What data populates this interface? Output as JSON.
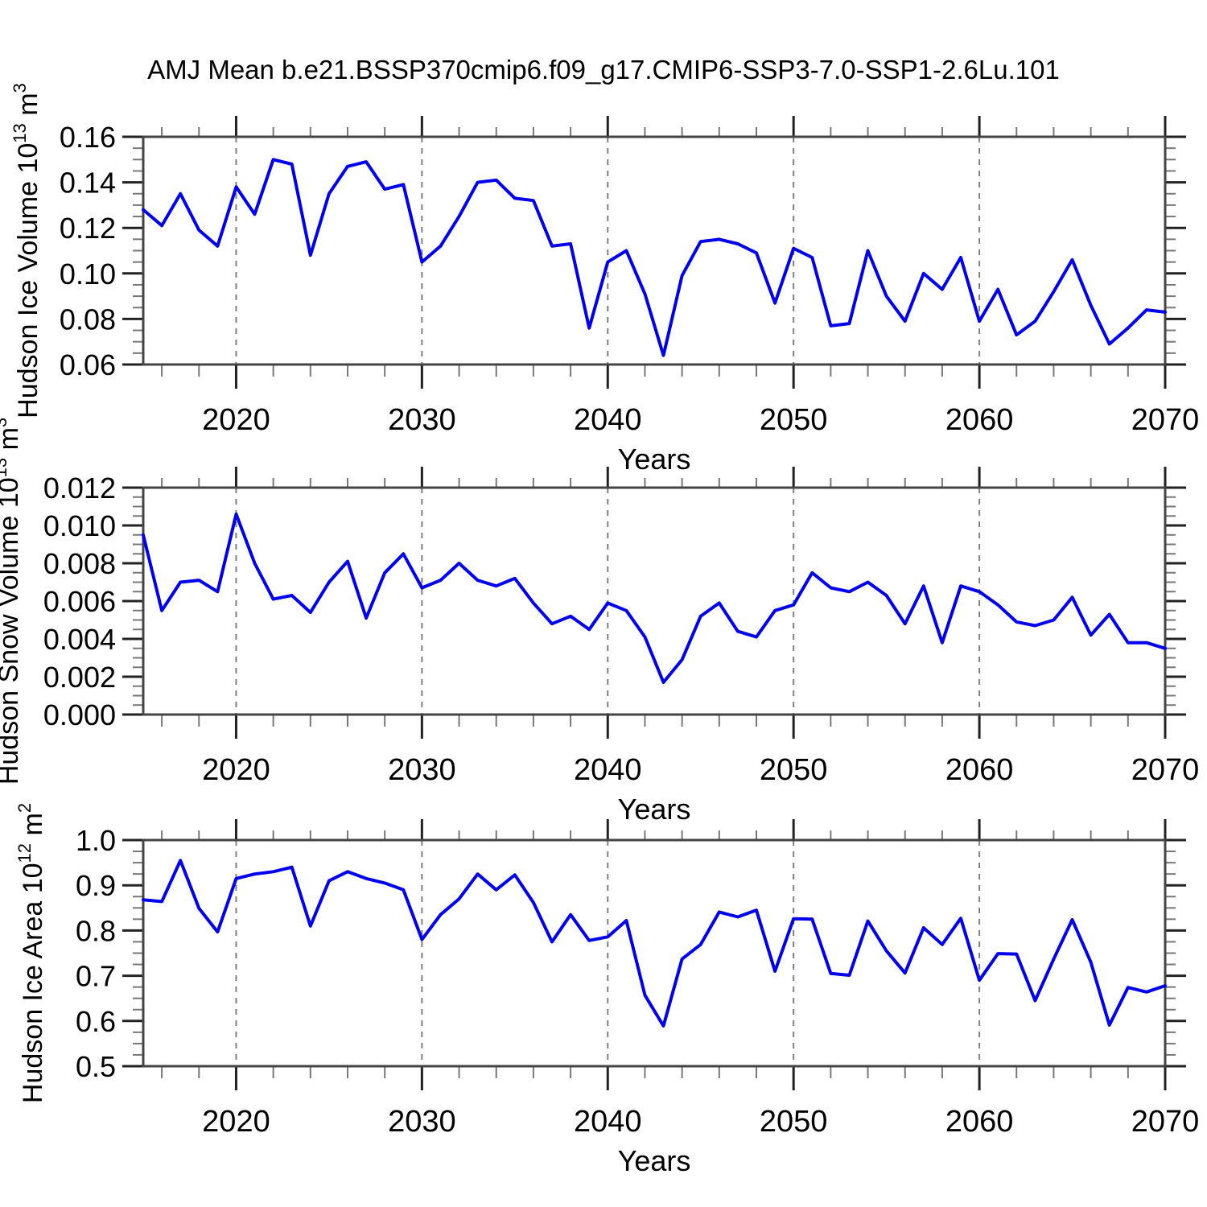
{
  "title": "AMJ Mean b.e21.BSSP370cmip6.f09_g17.CMIP6-SSP3-7.0-SSP1-2.6Lu.101",
  "line_color": "#0000EE",
  "chart_data": {
    "type": "line",
    "x_label": "Years",
    "x_range": [
      2015,
      2070
    ],
    "x_major_ticks": [
      2020,
      2030,
      2040,
      2050,
      2060,
      2070
    ],
    "x_minor_tick_step": 2,
    "vertical_dashed_gridlines": [
      2020,
      2030,
      2040,
      2050,
      2060
    ],
    "legend_position": "none",
    "years": [
      2015,
      2016,
      2017,
      2018,
      2019,
      2020,
      2021,
      2022,
      2023,
      2024,
      2025,
      2026,
      2027,
      2028,
      2029,
      2030,
      2031,
      2032,
      2033,
      2034,
      2035,
      2036,
      2037,
      2038,
      2039,
      2040,
      2041,
      2042,
      2043,
      2044,
      2045,
      2046,
      2047,
      2048,
      2049,
      2050,
      2051,
      2052,
      2053,
      2054,
      2055,
      2056,
      2057,
      2058,
      2059,
      2060,
      2061,
      2062,
      2063,
      2064,
      2065,
      2066,
      2067,
      2068,
      2069,
      2070
    ],
    "panels": [
      {
        "name": "hudson-ice-volume",
        "ylabel": "Hudson Ice Volume 10^13^ m^3^",
        "xlabel": "Years",
        "ylim": [
          0.06,
          0.16
        ],
        "ytick_labels": [
          "0.06",
          "0.08",
          "0.10",
          "0.12",
          "0.14",
          "0.16"
        ],
        "ytick_values": [
          0.06,
          0.08,
          0.1,
          0.12,
          0.14,
          0.16
        ],
        "values": [
          0.128,
          0.121,
          0.135,
          0.119,
          0.112,
          0.138,
          0.126,
          0.15,
          0.148,
          0.108,
          0.135,
          0.147,
          0.149,
          0.137,
          0.139,
          0.105,
          0.112,
          0.125,
          0.14,
          0.141,
          0.133,
          0.132,
          0.112,
          0.113,
          0.076,
          0.105,
          0.11,
          0.091,
          0.064,
          0.099,
          0.114,
          0.115,
          0.113,
          0.109,
          0.087,
          0.111,
          0.107,
          0.077,
          0.078,
          0.11,
          0.09,
          0.079,
          0.1,
          0.093,
          0.107,
          0.079,
          0.093,
          0.073,
          0.079,
          0.092,
          0.106,
          0.086,
          0.069,
          0.076,
          0.084,
          0.083
        ]
      },
      {
        "name": "hudson-snow-volume",
        "ylabel": "Hudson Snow Volume 10^13^ m^3^",
        "xlabel": "Years",
        "ylim": [
          0.0,
          0.012
        ],
        "ytick_labels": [
          "0.000",
          "0.002",
          "0.004",
          "0.006",
          "0.008",
          "0.010",
          "0.012"
        ],
        "ytick_values": [
          0.0,
          0.002,
          0.004,
          0.006,
          0.008,
          0.01,
          0.012
        ],
        "values": [
          0.0095,
          0.0055,
          0.007,
          0.0071,
          0.0065,
          0.0106,
          0.008,
          0.0061,
          0.0063,
          0.0054,
          0.007,
          0.0081,
          0.0051,
          0.0075,
          0.0085,
          0.0067,
          0.0071,
          0.008,
          0.0071,
          0.0068,
          0.0072,
          0.0059,
          0.0048,
          0.0052,
          0.0045,
          0.0059,
          0.0055,
          0.0041,
          0.0017,
          0.0029,
          0.0052,
          0.0059,
          0.0044,
          0.0041,
          0.0055,
          0.0058,
          0.0075,
          0.0067,
          0.0065,
          0.007,
          0.0063,
          0.0048,
          0.0068,
          0.0038,
          0.0068,
          0.0065,
          0.0058,
          0.0049,
          0.0047,
          0.005,
          0.0062,
          0.0042,
          0.0053,
          0.0038,
          0.0038,
          0.0035
        ]
      },
      {
        "name": "hudson-ice-area",
        "ylabel": "Hudson Ice Area 10^12^ m^2^",
        "xlabel": "Years",
        "ylim": [
          0.5,
          1.0
        ],
        "ytick_labels": [
          "0.5",
          "0.6",
          "0.7",
          "0.8",
          "0.9",
          "1.0"
        ],
        "ytick_values": [
          0.5,
          0.6,
          0.7,
          0.8,
          0.9,
          1.0
        ],
        "values": [
          0.868,
          0.864,
          0.955,
          0.849,
          0.797,
          0.915,
          0.925,
          0.93,
          0.94,
          0.81,
          0.91,
          0.93,
          0.915,
          0.905,
          0.89,
          0.78,
          0.835,
          0.87,
          0.925,
          0.89,
          0.923,
          0.862,
          0.775,
          0.835,
          0.778,
          0.786,
          0.822,
          0.657,
          0.589,
          0.737,
          0.769,
          0.841,
          0.83,
          0.845,
          0.71,
          0.826,
          0.825,
          0.705,
          0.701,
          0.821,
          0.755,
          0.706,
          0.806,
          0.769,
          0.827,
          0.69,
          0.749,
          0.748,
          0.645,
          0.737,
          0.824,
          0.73,
          0.591,
          0.674,
          0.664,
          0.678
        ]
      }
    ]
  }
}
